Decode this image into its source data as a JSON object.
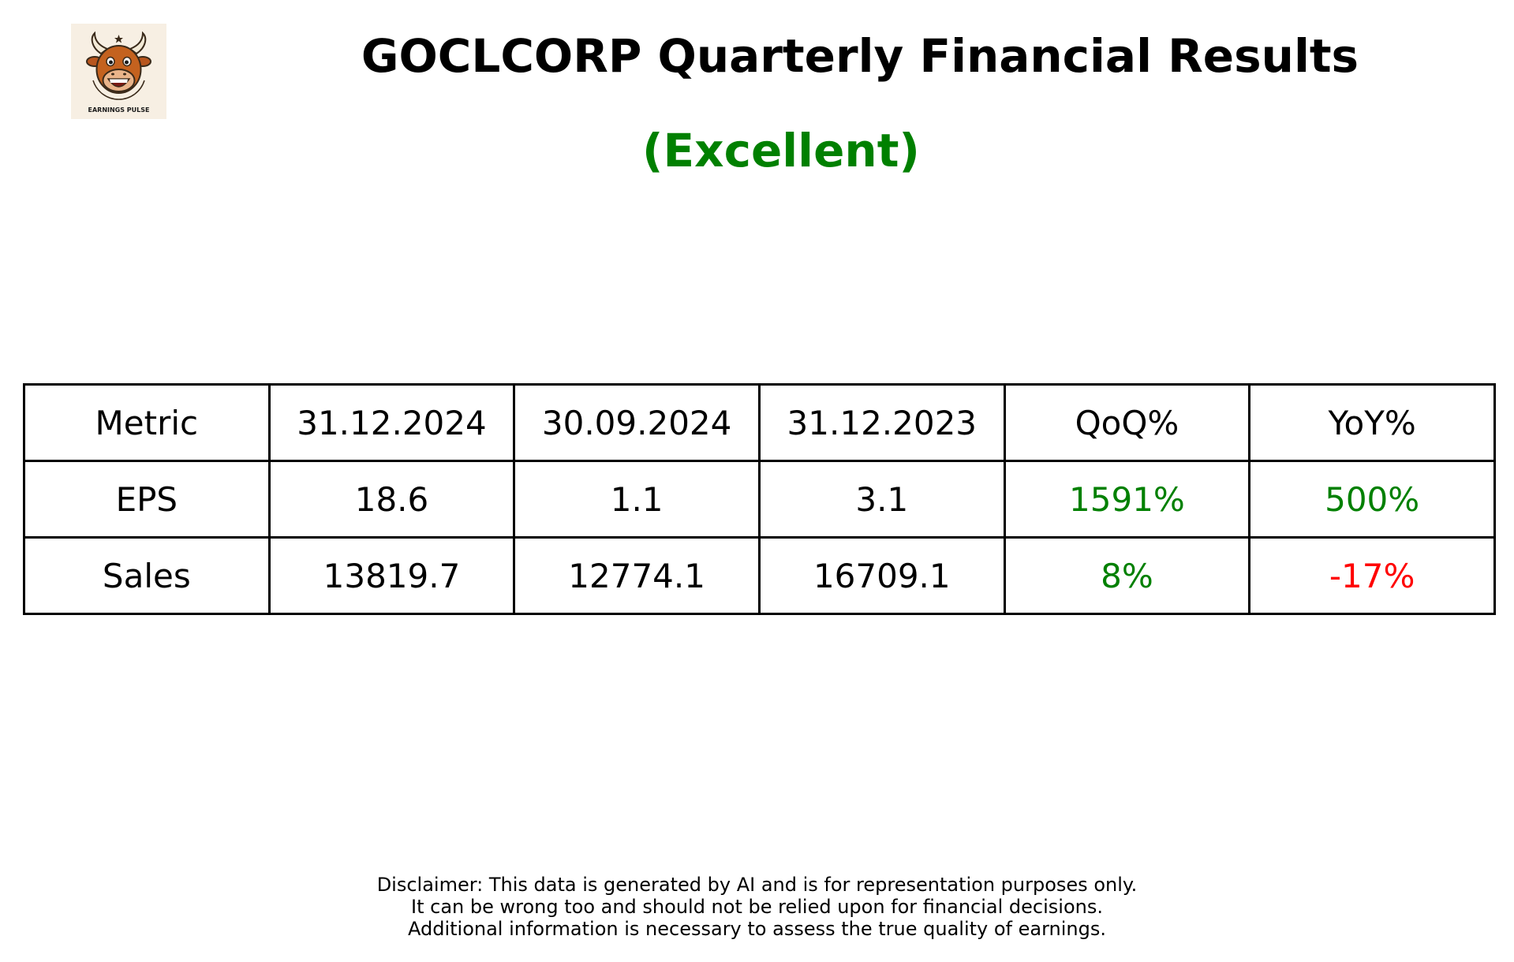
{
  "logo": {
    "text": "EARNINGS PULSE",
    "icon": "bull-mascot-icon"
  },
  "header": {
    "title": "GOCLCORP Quarterly Financial Results",
    "rating": "(Excellent)"
  },
  "colors": {
    "positive": "#008000",
    "negative": "#ff0000",
    "neutral": "#000000"
  },
  "table": {
    "columns": [
      "Metric",
      "31.12.2024",
      "30.09.2024",
      "31.12.2023",
      "QoQ%",
      "YoY%"
    ],
    "rows": [
      {
        "metric": "EPS",
        "q1": "18.6",
        "q2": "1.1",
        "q3": "3.1",
        "qoq": "1591%",
        "qoq_color": "#008000",
        "yoy": "500%",
        "yoy_color": "#008000"
      },
      {
        "metric": "Sales",
        "q1": "13819.7",
        "q2": "12774.1",
        "q3": "16709.1",
        "qoq": "8%",
        "qoq_color": "#008000",
        "yoy": "-17%",
        "yoy_color": "#ff0000"
      }
    ]
  },
  "disclaimer": [
    "Disclaimer: This data is generated by AI and is for representation purposes only.",
    "It can be wrong too and should not be relied upon for financial decisions.",
    "Additional information is necessary to assess the true quality of earnings."
  ]
}
